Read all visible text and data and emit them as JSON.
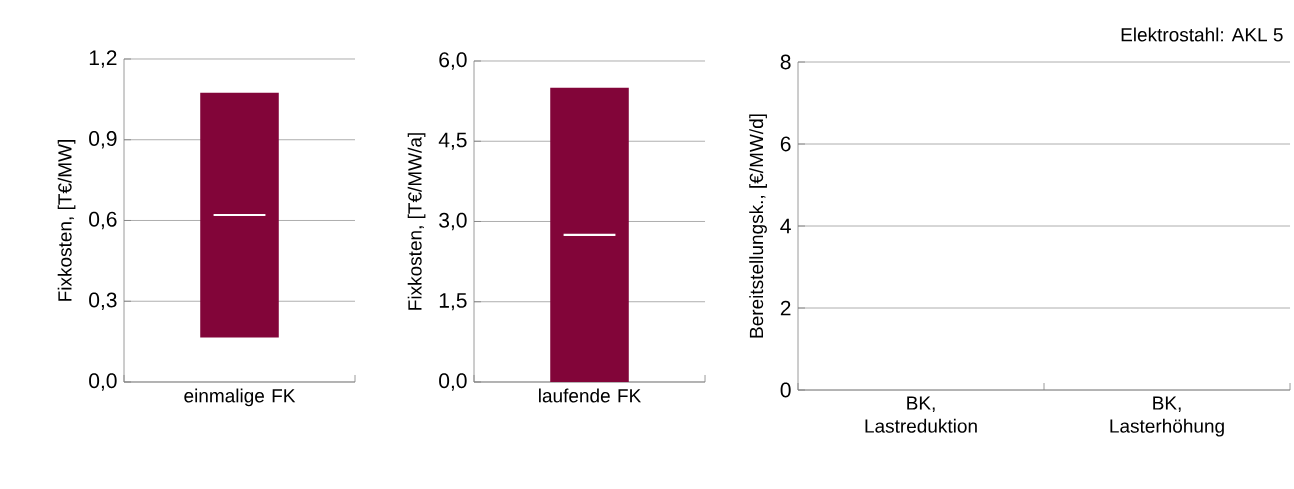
{
  "chart_data": [
    {
      "type": "box",
      "ylabel": "Fixkosten, [T€/MW]",
      "categories": [
        "einmalige FK"
      ],
      "color": "#820539",
      "boxes": [
        {
          "low": 0.165,
          "q1": 0.165,
          "median": 0.62,
          "q3": 1.075,
          "high": 1.075
        }
      ],
      "ylim": [
        0,
        1.2
      ],
      "yticks": [
        {
          "value": 0,
          "label": "0,0"
        },
        {
          "value": 0.3,
          "label": "0,3"
        },
        {
          "value": 0.6,
          "label": "0,6"
        },
        {
          "value": 0.9,
          "label": "0,9"
        },
        {
          "value": 1.2,
          "label": "1,2"
        }
      ],
      "grid": "y"
    },
    {
      "type": "box",
      "ylabel": "Fixkosten, [T€/MW/a]",
      "categories": [
        "laufende FK"
      ],
      "color": "#820539",
      "boxes": [
        {
          "low": 0,
          "q1": 0,
          "median": 2.75,
          "q3": 5.5,
          "high": 5.5
        }
      ],
      "ylim": [
        0,
        6
      ],
      "yticks": [
        {
          "value": 0,
          "label": "0,0"
        },
        {
          "value": 1.5,
          "label": "1,5"
        },
        {
          "value": 3,
          "label": "3,0"
        },
        {
          "value": 4.5,
          "label": "4,5"
        },
        {
          "value": 6,
          "label": "6,0"
        }
      ],
      "grid": "y"
    },
    {
      "type": "bar",
      "title": "Elektrostahl: AKL 5",
      "ylabel": "Bereitstellungsk., [€/MW/d]",
      "categories": [
        "BK, Lastreduktion",
        "BK, Lasterhöhung"
      ],
      "values": [
        null,
        null
      ],
      "ylim": [
        0,
        8
      ],
      "yticks": [
        0,
        2,
        4,
        6,
        8
      ],
      "grid": "y"
    }
  ]
}
